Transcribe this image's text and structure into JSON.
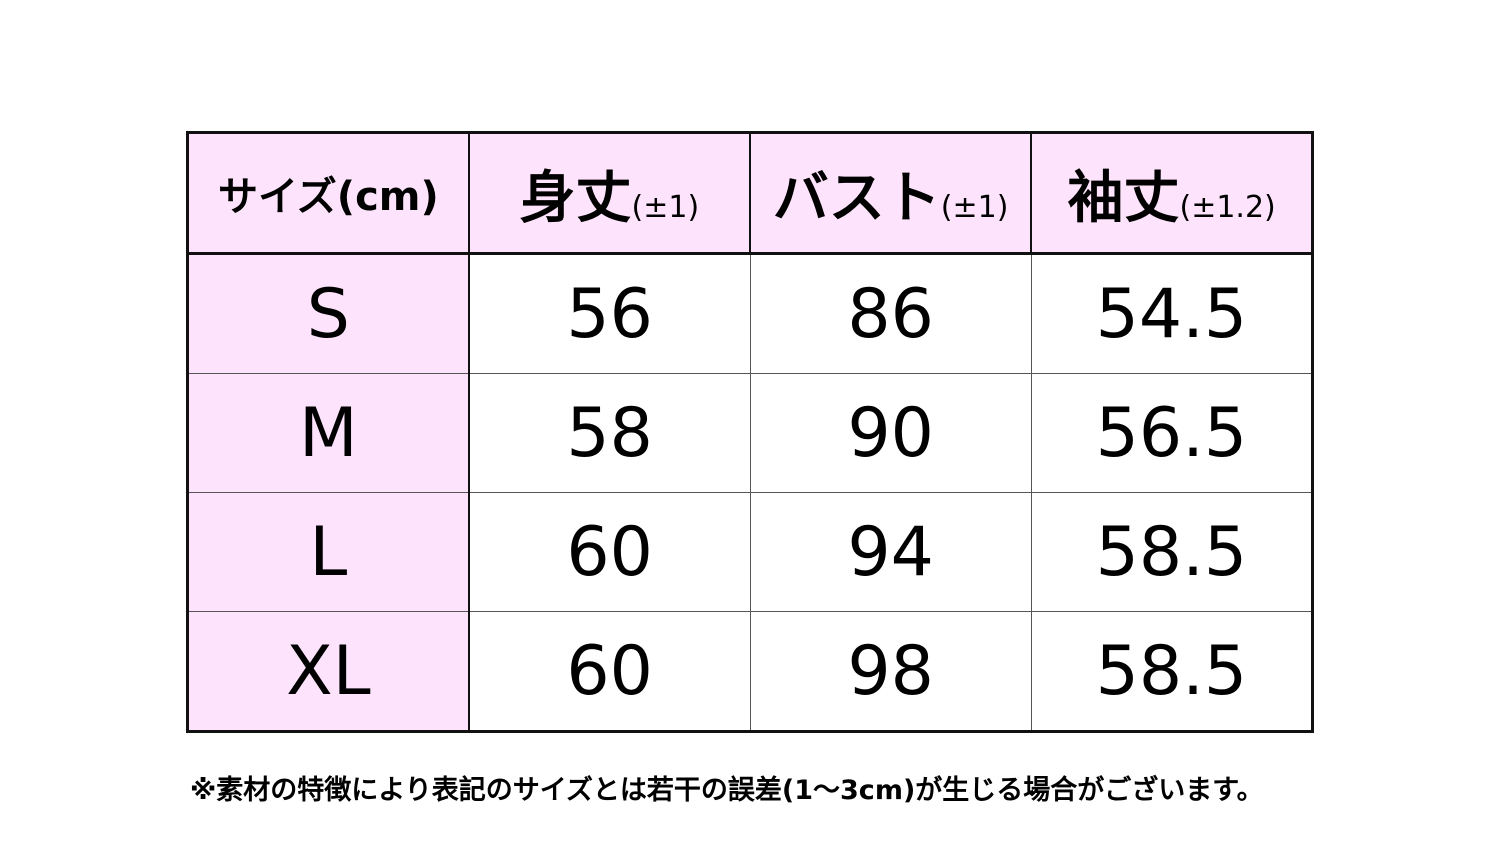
{
  "table": {
    "headers": [
      {
        "main": "サイズ(cm)",
        "tol": ""
      },
      {
        "main": "身丈",
        "tol": "(±1)"
      },
      {
        "main": "バスト",
        "tol": "(±1)"
      },
      {
        "main": "袖丈",
        "tol": "(±1.2)"
      }
    ],
    "rows": [
      [
        "S",
        "56",
        "86",
        "54.5"
      ],
      [
        "M",
        "58",
        "90",
        "56.5"
      ],
      [
        "L",
        "60",
        "94",
        "58.5"
      ],
      [
        "XL",
        "60",
        "98",
        "58.5"
      ]
    ]
  },
  "note": "※素材の特徴により表記のサイズとは若干の誤差(1～3cm)が生じる場合がございます。",
  "colors": {
    "header_bg": "#fde4fc",
    "border": "#111111"
  }
}
